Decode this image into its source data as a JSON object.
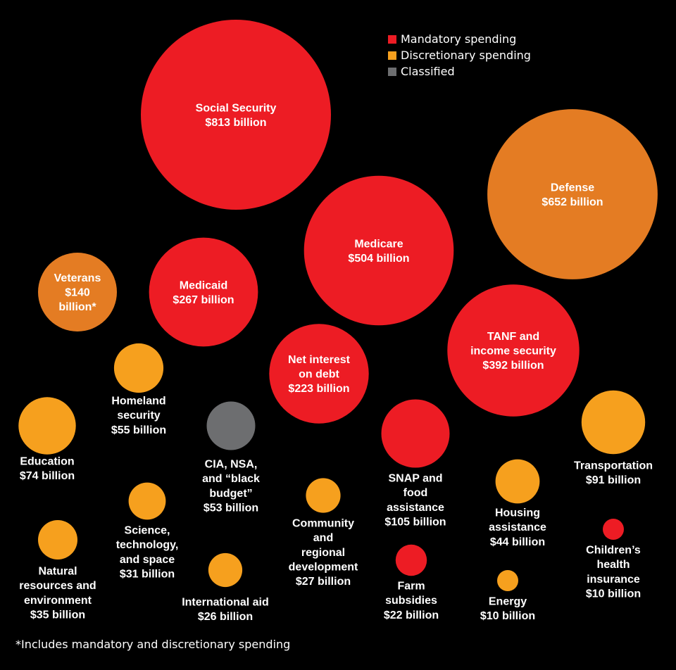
{
  "colors": {
    "mandatory": "#ed1c24",
    "discretionary": "#f6a01e",
    "discretionary_dark": "#e47c23",
    "classified": "#6d6e70",
    "background": "#000000",
    "text": "#ffffff"
  },
  "legend": [
    {
      "label": "Mandatory spending",
      "color": "#ed1c24"
    },
    {
      "label": "Discretionary spending",
      "color": "#f6a01e"
    },
    {
      "label": "Classified",
      "color": "#6d6e70"
    }
  ],
  "footnote": "*Includes mandatory and discretionary spending",
  "chart_data": {
    "type": "bubble",
    "unit": "billion USD",
    "items": [
      {
        "name": "Social Security",
        "value": 813,
        "category": "mandatory",
        "label_lines": [
          "Social Security",
          "$813 billion"
        ]
      },
      {
        "name": "Defense",
        "value": 652,
        "category": "discretionary",
        "label_lines": [
          "Defense",
          "$652 billion"
        ]
      },
      {
        "name": "Medicare",
        "value": 504,
        "category": "mandatory",
        "label_lines": [
          "Medicare",
          "$504 billion"
        ]
      },
      {
        "name": "TANF and income security",
        "value": 392,
        "category": "mandatory",
        "label_lines": [
          "TANF and",
          "income security",
          "$392 billion"
        ]
      },
      {
        "name": "Medicaid",
        "value": 267,
        "category": "mandatory",
        "label_lines": [
          "Medicaid",
          "$267 billion"
        ]
      },
      {
        "name": "Net interest on debt",
        "value": 223,
        "category": "mandatory",
        "label_lines": [
          "Net interest",
          "on debt",
          "$223 billion"
        ]
      },
      {
        "name": "Veterans",
        "value": 140,
        "category": "mixed",
        "label_lines": [
          "Veterans",
          "$140",
          "billion*"
        ]
      },
      {
        "name": "SNAP and food assistance",
        "value": 105,
        "category": "mandatory",
        "label_lines": [
          "SNAP and",
          "food",
          "assistance",
          "$105 billion"
        ]
      },
      {
        "name": "Transportation",
        "value": 91,
        "category": "discretionary",
        "label_lines": [
          "Transportation",
          "$91 billion"
        ]
      },
      {
        "name": "Education",
        "value": 74,
        "category": "discretionary",
        "label_lines": [
          "Education",
          "$74 billion"
        ]
      },
      {
        "name": "Homeland security",
        "value": 55,
        "category": "discretionary",
        "label_lines": [
          "Homeland",
          "security",
          "$55 billion"
        ]
      },
      {
        "name": "CIA, NSA, and “black budget”",
        "value": 53,
        "category": "classified",
        "label_lines": [
          "CIA, NSA,",
          "and “black",
          "budget”",
          "$53 billion"
        ]
      },
      {
        "name": "Housing assistance",
        "value": 44,
        "category": "discretionary",
        "label_lines": [
          "Housing",
          "assistance",
          "$44 billion"
        ]
      },
      {
        "name": "Natural resources and environment",
        "value": 35,
        "category": "discretionary",
        "label_lines": [
          "Natural",
          "resources and",
          "environment",
          "$35 billion"
        ]
      },
      {
        "name": "Science, technology, and space",
        "value": 31,
        "category": "discretionary",
        "label_lines": [
          "Science,",
          "technology,",
          "and space",
          "$31 billion"
        ]
      },
      {
        "name": "Community and regional development",
        "value": 27,
        "category": "discretionary",
        "label_lines": [
          "Community",
          "and",
          "regional",
          "development",
          "$27 billion"
        ]
      },
      {
        "name": "International aid",
        "value": 26,
        "category": "discretionary",
        "label_lines": [
          "International aid",
          "$26 billion"
        ]
      },
      {
        "name": "Farm subsidies",
        "value": 22,
        "category": "mandatory",
        "label_lines": [
          "Farm",
          "subsidies",
          "$22 billion"
        ]
      },
      {
        "name": "Energy",
        "value": 10,
        "category": "discretionary",
        "label_lines": [
          "Energy",
          "$10 billion"
        ]
      },
      {
        "name": "Children’s health insurance",
        "value": 10,
        "category": "mandatory",
        "label_lines": [
          "Children’s",
          "health",
          "insurance",
          "$10 billion"
        ]
      }
    ]
  }
}
